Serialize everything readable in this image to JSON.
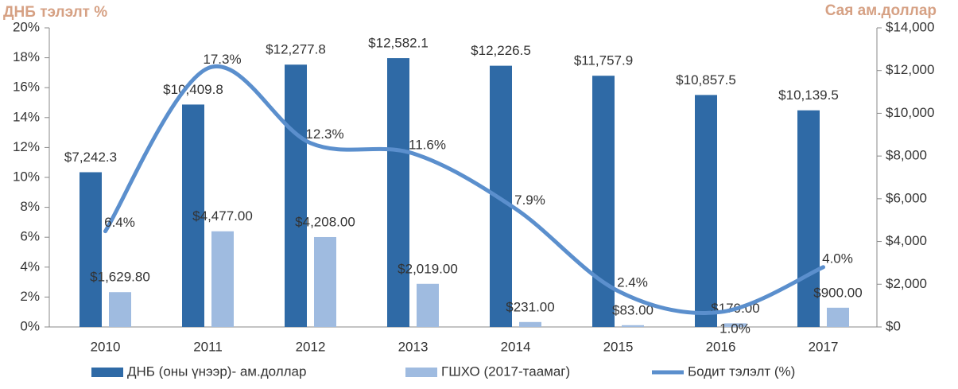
{
  "chart_data": {
    "type": "bar-line",
    "y_label": "ДНБ тэлэлт %",
    "y2_label": "Сая ам.доллар",
    "categories": [
      "2010",
      "2011",
      "2012",
      "2013",
      "2014",
      "2015",
      "2016",
      "2017"
    ],
    "series": [
      {
        "name": "ДНБ (оны үнээр)- ам.доллар",
        "type": "bar",
        "axis": "y2",
        "color": "#2f6aa6",
        "values": [
          7242.3,
          10409.8,
          12277.8,
          12582.1,
          12226.5,
          11757.9,
          10857.5,
          10139.5
        ],
        "value_labels": [
          "$7,242.3",
          "$10,409.8",
          "$12,277.8",
          "$12,582.1",
          "$12,226.5",
          "$11,757.9",
          "$10,857.5",
          "$10,139.5"
        ]
      },
      {
        "name": "ГШХО (2017-таамаг)",
        "type": "bar",
        "axis": "y2",
        "color": "#9fbbe0",
        "values": [
          1629.8,
          4477,
          4208,
          2019,
          231,
          83,
          170,
          900
        ],
        "value_labels": [
          "$1,629.80",
          "$4,477.00",
          "$4,208.00",
          "$2,019.00",
          "$231.00",
          "$83.00",
          "$170.00",
          "$900.00"
        ]
      },
      {
        "name": "Бодит тэлэлт (%)",
        "type": "line",
        "axis": "y",
        "color": "#5b8fcd",
        "values": [
          6.4,
          17.3,
          12.3,
          11.6,
          7.9,
          2.4,
          1.0,
          4.0
        ],
        "value_labels": [
          "6.4%",
          "17.3%",
          "12.3%",
          "11.6%",
          "7.9%",
          "2.4%",
          "1.0%",
          "4.0%"
        ]
      }
    ],
    "ylim": [
      0,
      20
    ],
    "yticks": [
      {
        "value": 0,
        "label": "0%"
      },
      {
        "value": 2,
        "label": "2%"
      },
      {
        "value": 4,
        "label": "4%"
      },
      {
        "value": 6,
        "label": "6%"
      },
      {
        "value": 8,
        "label": "8%"
      },
      {
        "value": 10,
        "label": "10%"
      },
      {
        "value": 12,
        "label": "12%"
      },
      {
        "value": 14,
        "label": "14%"
      },
      {
        "value": 16,
        "label": "16%"
      },
      {
        "value": 18,
        "label": "18%"
      },
      {
        "value": 20,
        "label": "20%"
      }
    ],
    "y2lim": [
      0,
      14000
    ],
    "y2ticks": [
      {
        "value": 0,
        "label": "$0"
      },
      {
        "value": 2000,
        "label": "$2,000"
      },
      {
        "value": 4000,
        "label": "$4,000"
      },
      {
        "value": 6000,
        "label": "$6,000"
      },
      {
        "value": 8000,
        "label": "$8,000"
      },
      {
        "value": 10000,
        "label": "$10,000"
      },
      {
        "value": 12000,
        "label": "$12,000"
      },
      {
        "value": 14000,
        "label": "$14,000"
      }
    ],
    "legend": "bottom"
  }
}
